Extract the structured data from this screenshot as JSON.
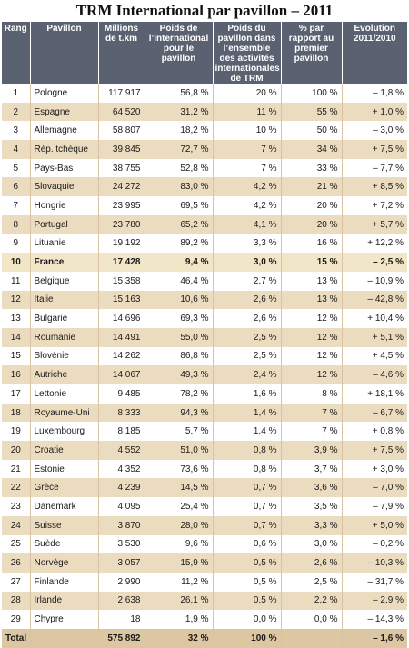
{
  "title": "TRM International par pavillon – 2011",
  "headers": {
    "rang": "Rang",
    "pavillon": "Pavillon",
    "millions": "Millions de t.km",
    "poids_int": "Poids de l’international pour le pavillon",
    "poids_pav": "Poids du pavillon dans l’ensemble des activités internationales de TRM",
    "pct_premier": "% par rapport au premier pavillon",
    "evolution": "Evolution 2011/2010"
  },
  "rows": [
    {
      "rang": "1",
      "pavillon": "Pologne",
      "millions": "117 917",
      "poids_int": "56,8 %",
      "poids_pav": "20 %",
      "pct": "100 %",
      "evol": "– 1,8 %"
    },
    {
      "rang": "2",
      "pavillon": "Espagne",
      "millions": "64 520",
      "poids_int": "31,2 %",
      "poids_pav": "11 %",
      "pct": "55 %",
      "evol": "+ 1,0 %"
    },
    {
      "rang": "3",
      "pavillon": "Allemagne",
      "millions": "58 807",
      "poids_int": "18,2 %",
      "poids_pav": "10 %",
      "pct": "50 %",
      "evol": "– 3,0 %"
    },
    {
      "rang": "4",
      "pavillon": "Rép. tchèque",
      "millions": "39 845",
      "poids_int": "72,7 %",
      "poids_pav": "7 %",
      "pct": "34 %",
      "evol": "+ 7,5 %"
    },
    {
      "rang": "5",
      "pavillon": "Pays-Bas",
      "millions": "38 755",
      "poids_int": "52,8 %",
      "poids_pav": "7 %",
      "pct": "33 %",
      "evol": "– 7,7 %"
    },
    {
      "rang": "6",
      "pavillon": "Slovaquie",
      "millions": "24 272",
      "poids_int": "83,0 %",
      "poids_pav": "4,2 %",
      "pct": "21 %",
      "evol": "+ 8,5 %"
    },
    {
      "rang": "7",
      "pavillon": "Hongrie",
      "millions": "23 995",
      "poids_int": "69,5 %",
      "poids_pav": "4,2 %",
      "pct": "20 %",
      "evol": "+ 7,2 %"
    },
    {
      "rang": "8",
      "pavillon": "Portugal",
      "millions": "23 780",
      "poids_int": "65,2 %",
      "poids_pav": "4,1 %",
      "pct": "20 %",
      "evol": "+ 5,7 %"
    },
    {
      "rang": "9",
      "pavillon": "Lituanie",
      "millions": "19 192",
      "poids_int": "89,2 %",
      "poids_pav": "3,3 %",
      "pct": "16 %",
      "evol": "+ 12,2 %"
    },
    {
      "rang": "10",
      "pavillon": "France",
      "millions": "17 428",
      "poids_int": "9,4 %",
      "poids_pav": "3,0 %",
      "pct": "15 %",
      "evol": "– 2,5 %",
      "highlight": true
    },
    {
      "rang": "11",
      "pavillon": "Belgique",
      "millions": "15 358",
      "poids_int": "46,4 %",
      "poids_pav": "2,7 %",
      "pct": "13 %",
      "evol": "– 10,9 %"
    },
    {
      "rang": "12",
      "pavillon": "Italie",
      "millions": "15 163",
      "poids_int": "10,6 %",
      "poids_pav": "2,6 %",
      "pct": "13 %",
      "evol": "– 42,8 %"
    },
    {
      "rang": "13",
      "pavillon": "Bulgarie",
      "millions": "14 696",
      "poids_int": "69,3 %",
      "poids_pav": "2,6 %",
      "pct": "12 %",
      "evol": "+ 10,4 %"
    },
    {
      "rang": "14",
      "pavillon": "Roumanie",
      "millions": "14 491",
      "poids_int": "55,0 %",
      "poids_pav": "2,5 %",
      "pct": "12 %",
      "evol": "+ 5,1 %"
    },
    {
      "rang": "15",
      "pavillon": "Slovénie",
      "millions": "14 262",
      "poids_int": "86,8 %",
      "poids_pav": "2,5 %",
      "pct": "12 %",
      "evol": "+ 4,5 %"
    },
    {
      "rang": "16",
      "pavillon": "Autriche",
      "millions": "14 067",
      "poids_int": "49,3 %",
      "poids_pav": "2,4 %",
      "pct": "12 %",
      "evol": "– 4,6 %"
    },
    {
      "rang": "17",
      "pavillon": "Lettonie",
      "millions": "9 485",
      "poids_int": "78,2 %",
      "poids_pav": "1,6 %",
      "pct": "8 %",
      "evol": "+ 18,1 %"
    },
    {
      "rang": "18",
      "pavillon": "Royaume-Uni",
      "millions": "8 333",
      "poids_int": "94,3 %",
      "poids_pav": "1,4 %",
      "pct": "7 %",
      "evol": "– 6,7 %"
    },
    {
      "rang": "19",
      "pavillon": "Luxembourg",
      "millions": "8 185",
      "poids_int": "5,7 %",
      "poids_pav": "1,4 %",
      "pct": "7 %",
      "evol": "+ 0,8 %"
    },
    {
      "rang": "20",
      "pavillon": "Croatie",
      "millions": "4 552",
      "poids_int": "51,0 %",
      "poids_pav": "0,8 %",
      "pct": "3,9 %",
      "evol": "+ 7,5 %"
    },
    {
      "rang": "21",
      "pavillon": "Estonie",
      "millions": "4 352",
      "poids_int": "73,6 %",
      "poids_pav": "0,8 %",
      "pct": "3,7 %",
      "evol": "+ 3,0 %"
    },
    {
      "rang": "22",
      "pavillon": "Grèce",
      "millions": "4 239",
      "poids_int": "14,5 %",
      "poids_pav": "0,7 %",
      "pct": "3,6 %",
      "evol": "– 7,0 %"
    },
    {
      "rang": "23",
      "pavillon": "Danemark",
      "millions": "4 095",
      "poids_int": "25,4 %",
      "poids_pav": "0,7 %",
      "pct": "3,5 %",
      "evol": "– 7,9 %"
    },
    {
      "rang": "24",
      "pavillon": "Suisse",
      "millions": "3 870",
      "poids_int": "28,0 %",
      "poids_pav": "0,7 %",
      "pct": "3,3 %",
      "evol": "+ 5,0 %"
    },
    {
      "rang": "25",
      "pavillon": "Suède",
      "millions": "3 530",
      "poids_int": "9,6 %",
      "poids_pav": "0,6 %",
      "pct": "3,0 %",
      "evol": "– 0,2 %"
    },
    {
      "rang": "26",
      "pavillon": "Norvège",
      "millions": "3 057",
      "poids_int": "15,9 %",
      "poids_pav": "0,5 %",
      "pct": "2,6 %",
      "evol": "– 10,3 %"
    },
    {
      "rang": "27",
      "pavillon": "Finlande",
      "millions": "2 990",
      "poids_int": "11,2 %",
      "poids_pav": "0,5 %",
      "pct": "2,5 %",
      "evol": "– 31,7 %"
    },
    {
      "rang": "28",
      "pavillon": "Irlande",
      "millions": "2 638",
      "poids_int": "26,1 %",
      "poids_pav": "0,5 %",
      "pct": "2,2 %",
      "evol": "– 2,9 %"
    },
    {
      "rang": "29",
      "pavillon": "Chypre",
      "millions": "18",
      "poids_int": "1,9 %",
      "poids_pav": "0,0 %",
      "pct": "0,0 %",
      "evol": "– 14,3 %"
    }
  ],
  "total": {
    "label": "Total",
    "millions": "575 892",
    "poids_int": "32 %",
    "poids_pav": "100 %",
    "pct": "",
    "evol": "– 1,6 %"
  },
  "colors": {
    "header_bg": "#5a6272",
    "row_alt": "#ecdcbf",
    "total_bg": "#ddc7a2"
  }
}
